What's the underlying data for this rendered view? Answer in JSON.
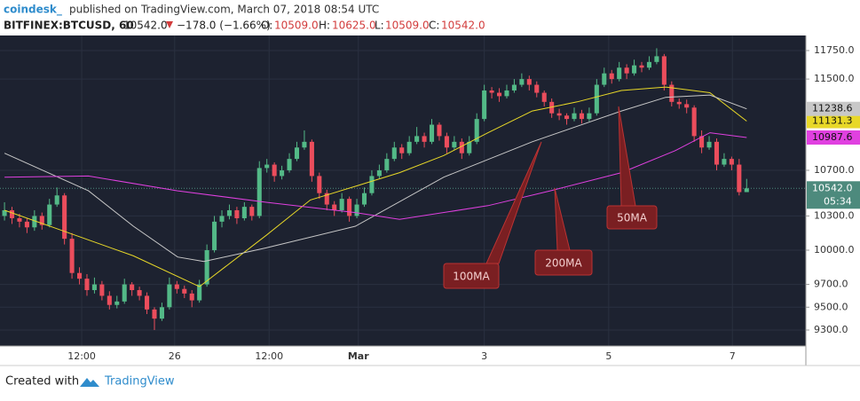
{
  "header": {
    "publisher": "coindesk_",
    "published": "published on TradingView.com, March 07, 2018 08:54 UTC",
    "symbol": "BITFINEX:BTCUSD, 60",
    "last": "10542.0",
    "change": "−178.0 (−1.66%)",
    "o_label": "O:",
    "o": "10509.0",
    "h_label": "H:",
    "h": "10625.0",
    "l_label": "L:",
    "l": "10509.0",
    "c_label": "C:",
    "c": "10542.0"
  },
  "footer": {
    "created": "Created with",
    "brand": "TradingView"
  },
  "chart_data": {
    "type": "candlestick",
    "up_color": "#53b987",
    "down_color": "#eb4d5c",
    "grid": true,
    "xlim": [
      -0.6,
      106.9
    ],
    "xticks": [
      {
        "value": 10.3,
        "label": "12:00"
      },
      {
        "value": 22.7,
        "label": "26"
      },
      {
        "value": 35.3,
        "label": "12:00"
      },
      {
        "value": 47.2,
        "label": "Mar"
      },
      {
        "value": 64.0,
        "label": "3"
      },
      {
        "value": 80.6,
        "label": "5"
      },
      {
        "value": 97.1,
        "label": "7"
      }
    ],
    "ylim": [
      9160,
      11882
    ],
    "yticks": [
      {
        "value": 9300,
        "label": "9300.0"
      },
      {
        "value": 9500,
        "label": "9500.0"
      },
      {
        "value": 9700,
        "label": "9700.0"
      },
      {
        "value": 10000,
        "label": "10000.0"
      },
      {
        "value": 10300,
        "label": "10300.0"
      },
      {
        "value": 10700,
        "label": "10700.0"
      },
      {
        "value": 11500,
        "label": "11500.0"
      },
      {
        "value": 11750,
        "label": "11750.0"
      }
    ],
    "candles": [
      [
        10300,
        10420,
        10260,
        10350
      ],
      [
        10350,
        10380,
        10230,
        10280
      ],
      [
        10280,
        10320,
        10200,
        10250
      ],
      [
        10250,
        10280,
        10150,
        10200
      ],
      [
        10200,
        10350,
        10170,
        10300
      ],
      [
        10300,
        10330,
        10180,
        10220
      ],
      [
        10220,
        10450,
        10200,
        10400
      ],
      [
        10400,
        10550,
        10380,
        10480
      ],
      [
        10480,
        10500,
        10050,
        10100
      ],
      [
        10100,
        10150,
        9750,
        9800
      ],
      [
        9800,
        9850,
        9700,
        9750
      ],
      [
        9750,
        9790,
        9600,
        9650
      ],
      [
        9650,
        9760,
        9620,
        9700
      ],
      [
        9700,
        9730,
        9560,
        9600
      ],
      [
        9600,
        9640,
        9480,
        9520
      ],
      [
        9520,
        9600,
        9490,
        9550
      ],
      [
        9550,
        9750,
        9530,
        9700
      ],
      [
        9700,
        9720,
        9600,
        9650
      ],
      [
        9650,
        9680,
        9560,
        9600
      ],
      [
        9600,
        9630,
        9440,
        9480
      ],
      [
        9480,
        9500,
        9300,
        9400
      ],
      [
        9400,
        9540,
        9380,
        9500
      ],
      [
        9500,
        9760,
        9480,
        9700
      ],
      [
        9700,
        9730,
        9620,
        9660
      ],
      [
        9660,
        9690,
        9580,
        9620
      ],
      [
        9620,
        9650,
        9500,
        9560
      ],
      [
        9560,
        9740,
        9540,
        9700
      ],
      [
        9700,
        10050,
        9680,
        10000
      ],
      [
        10000,
        10300,
        9980,
        10250
      ],
      [
        10250,
        10350,
        10200,
        10300
      ],
      [
        10300,
        10400,
        10270,
        10350
      ],
      [
        10350,
        10380,
        10230,
        10280
      ],
      [
        10280,
        10420,
        10260,
        10380
      ],
      [
        10380,
        10400,
        10260,
        10300
      ],
      [
        10300,
        10780,
        10280,
        10720
      ],
      [
        10720,
        10800,
        10680,
        10750
      ],
      [
        10750,
        10770,
        10600,
        10650
      ],
      [
        10650,
        10740,
        10620,
        10700
      ],
      [
        10700,
        10850,
        10680,
        10800
      ],
      [
        10800,
        10950,
        10780,
        10900
      ],
      [
        10900,
        11050,
        10880,
        10950
      ],
      [
        10950,
        10970,
        10600,
        10650
      ],
      [
        10650,
        10680,
        10450,
        10500
      ],
      [
        10500,
        10530,
        10350,
        10400
      ],
      [
        10400,
        10430,
        10300,
        10350
      ],
      [
        10350,
        10500,
        10330,
        10450
      ],
      [
        10450,
        10470,
        10250,
        10300
      ],
      [
        10300,
        10450,
        10280,
        10400
      ],
      [
        10400,
        10550,
        10380,
        10500
      ],
      [
        10500,
        10700,
        10480,
        10650
      ],
      [
        10650,
        10750,
        10630,
        10700
      ],
      [
        10700,
        10850,
        10680,
        10800
      ],
      [
        10800,
        10950,
        10780,
        10900
      ],
      [
        10900,
        10930,
        10800,
        10850
      ],
      [
        10850,
        11000,
        10830,
        10950
      ],
      [
        10950,
        11080,
        10930,
        11000
      ],
      [
        11000,
        11030,
        10900,
        10950
      ],
      [
        10950,
        11150,
        10930,
        11100
      ],
      [
        11100,
        11120,
        10960,
        11000
      ],
      [
        11000,
        11030,
        10850,
        10900
      ],
      [
        10900,
        11000,
        10880,
        10950
      ],
      [
        10950,
        10980,
        10800,
        10850
      ],
      [
        10850,
        11000,
        10830,
        10950
      ],
      [
        10950,
        11200,
        10930,
        11150
      ],
      [
        11150,
        11450,
        11130,
        11400
      ],
      [
        11400,
        11430,
        11330,
        11380
      ],
      [
        11380,
        11420,
        11300,
        11350
      ],
      [
        11350,
        11450,
        11330,
        11400
      ],
      [
        11400,
        11500,
        11380,
        11450
      ],
      [
        11450,
        11550,
        11430,
        11500
      ],
      [
        11500,
        11530,
        11400,
        11450
      ],
      [
        11450,
        11480,
        11340,
        11380
      ],
      [
        11380,
        11400,
        11260,
        11300
      ],
      [
        11300,
        11330,
        11160,
        11200
      ],
      [
        11200,
        11240,
        11140,
        11180
      ],
      [
        11180,
        11200,
        11100,
        11150
      ],
      [
        11150,
        11250,
        11130,
        11200
      ],
      [
        11200,
        11230,
        11110,
        11150
      ],
      [
        11150,
        11250,
        11130,
        11200
      ],
      [
        11200,
        11500,
        11180,
        11450
      ],
      [
        11450,
        11600,
        11430,
        11550
      ],
      [
        11550,
        11580,
        11460,
        11500
      ],
      [
        11500,
        11650,
        11480,
        11600
      ],
      [
        11600,
        11630,
        11500,
        11550
      ],
      [
        11550,
        11670,
        11530,
        11620
      ],
      [
        11620,
        11650,
        11560,
        11600
      ],
      [
        11600,
        11700,
        11580,
        11650
      ],
      [
        11650,
        11770,
        11630,
        11700
      ],
      [
        11700,
        11720,
        11400,
        11450
      ],
      [
        11450,
        11480,
        11260,
        11300
      ],
      [
        11300,
        11330,
        11240,
        11280
      ],
      [
        11280,
        11320,
        11200,
        11250
      ],
      [
        11250,
        11270,
        10950,
        11000
      ],
      [
        11000,
        11050,
        10850,
        10900
      ],
      [
        10900,
        11000,
        10880,
        10950
      ],
      [
        10950,
        10980,
        10700,
        10750
      ],
      [
        10750,
        10850,
        10730,
        10800
      ],
      [
        10800,
        10820,
        10700,
        10750
      ],
      [
        10750,
        10800,
        10480,
        10509
      ],
      [
        10509,
        10625,
        10509,
        10542
      ]
    ],
    "series": [
      {
        "name": "50MA",
        "color": "#e8d828",
        "x": [
          0,
          6.5,
          17.2,
          26,
          34.9,
          40.8,
          46.8,
          52.7,
          58.6,
          64.5,
          70.4,
          76.4,
          82.3,
          88.2,
          94.1,
          99
        ],
        "values": [
          10350,
          10200,
          9950,
          9680,
          10130,
          10440,
          10560,
          10680,
          10830,
          11030,
          11220,
          11300,
          11400,
          11430,
          11380,
          11131.3
        ],
        "last": 11131.3
      },
      {
        "name": "100MA",
        "color": "#c8c8c8",
        "x": [
          0,
          11.2,
          17.2,
          23.1,
          26.6,
          34.9,
          46.8,
          58.6,
          70.4,
          82.3,
          88.2,
          94.1,
          99
        ],
        "values": [
          10850,
          10520,
          10210,
          9940,
          9900,
          10020,
          10210,
          10640,
          10950,
          11220,
          11340,
          11360,
          11238.6
        ],
        "last": 11238.6
      },
      {
        "name": "200MA",
        "color": "#e040e0",
        "x": [
          0,
          11.2,
          23.1,
          34.9,
          46.8,
          52.7,
          64.5,
          72.8,
          82.3,
          89.4,
          94.1,
          99
        ],
        "values": [
          10640,
          10650,
          10520,
          10420,
          10330,
          10270,
          10390,
          10520,
          10680,
          10870,
          11030,
          10987.6
        ],
        "last": 10987.6
      }
    ],
    "last_price": {
      "value": 10542,
      "label": "10542.0"
    },
    "countdown": "05:34"
  }
}
